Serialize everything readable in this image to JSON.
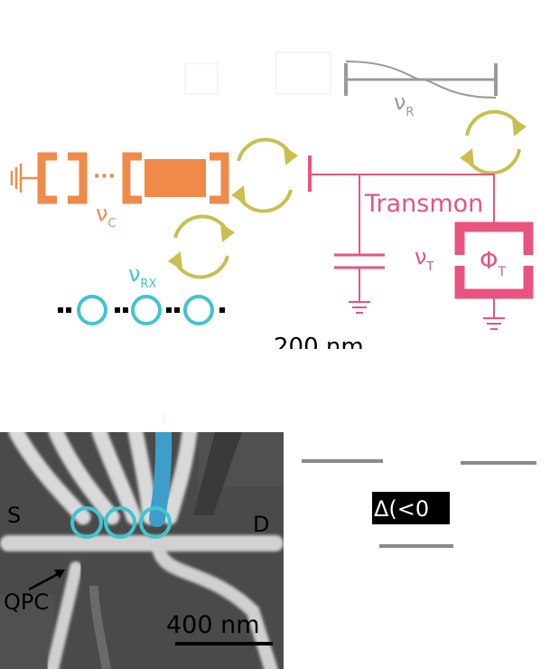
{
  "colors": {
    "resonator": "#9a9a9a",
    "cavity": "#ef8a4a",
    "transmon": "#e8537f",
    "coupling": "#c9bf50",
    "rx": "#3fc5cf",
    "sem_bg": "#4a4a4a"
  },
  "resonator": {
    "label": "ν",
    "sub": "R"
  },
  "cavity": {
    "label": "ν",
    "sub": "C",
    "ellipsis": "···"
  },
  "transmon": {
    "title": "Transmon",
    "label": "ν",
    "sub": "T",
    "flux": "Φ",
    "flux_sub": "T"
  },
  "chain": {
    "label": "ν",
    "sub": "RX"
  },
  "scalebar_top": "200 nm",
  "sem": {
    "source": "S",
    "drain": "D",
    "qpc": "QPC",
    "scalebar": "400 nm"
  },
  "energy": {
    "delta_text": "Δ(<0"
  },
  "icons": [
    "ground-icon",
    "capacitor-icon",
    "rotation-arrows-icon",
    "flux-loop-icon"
  ]
}
